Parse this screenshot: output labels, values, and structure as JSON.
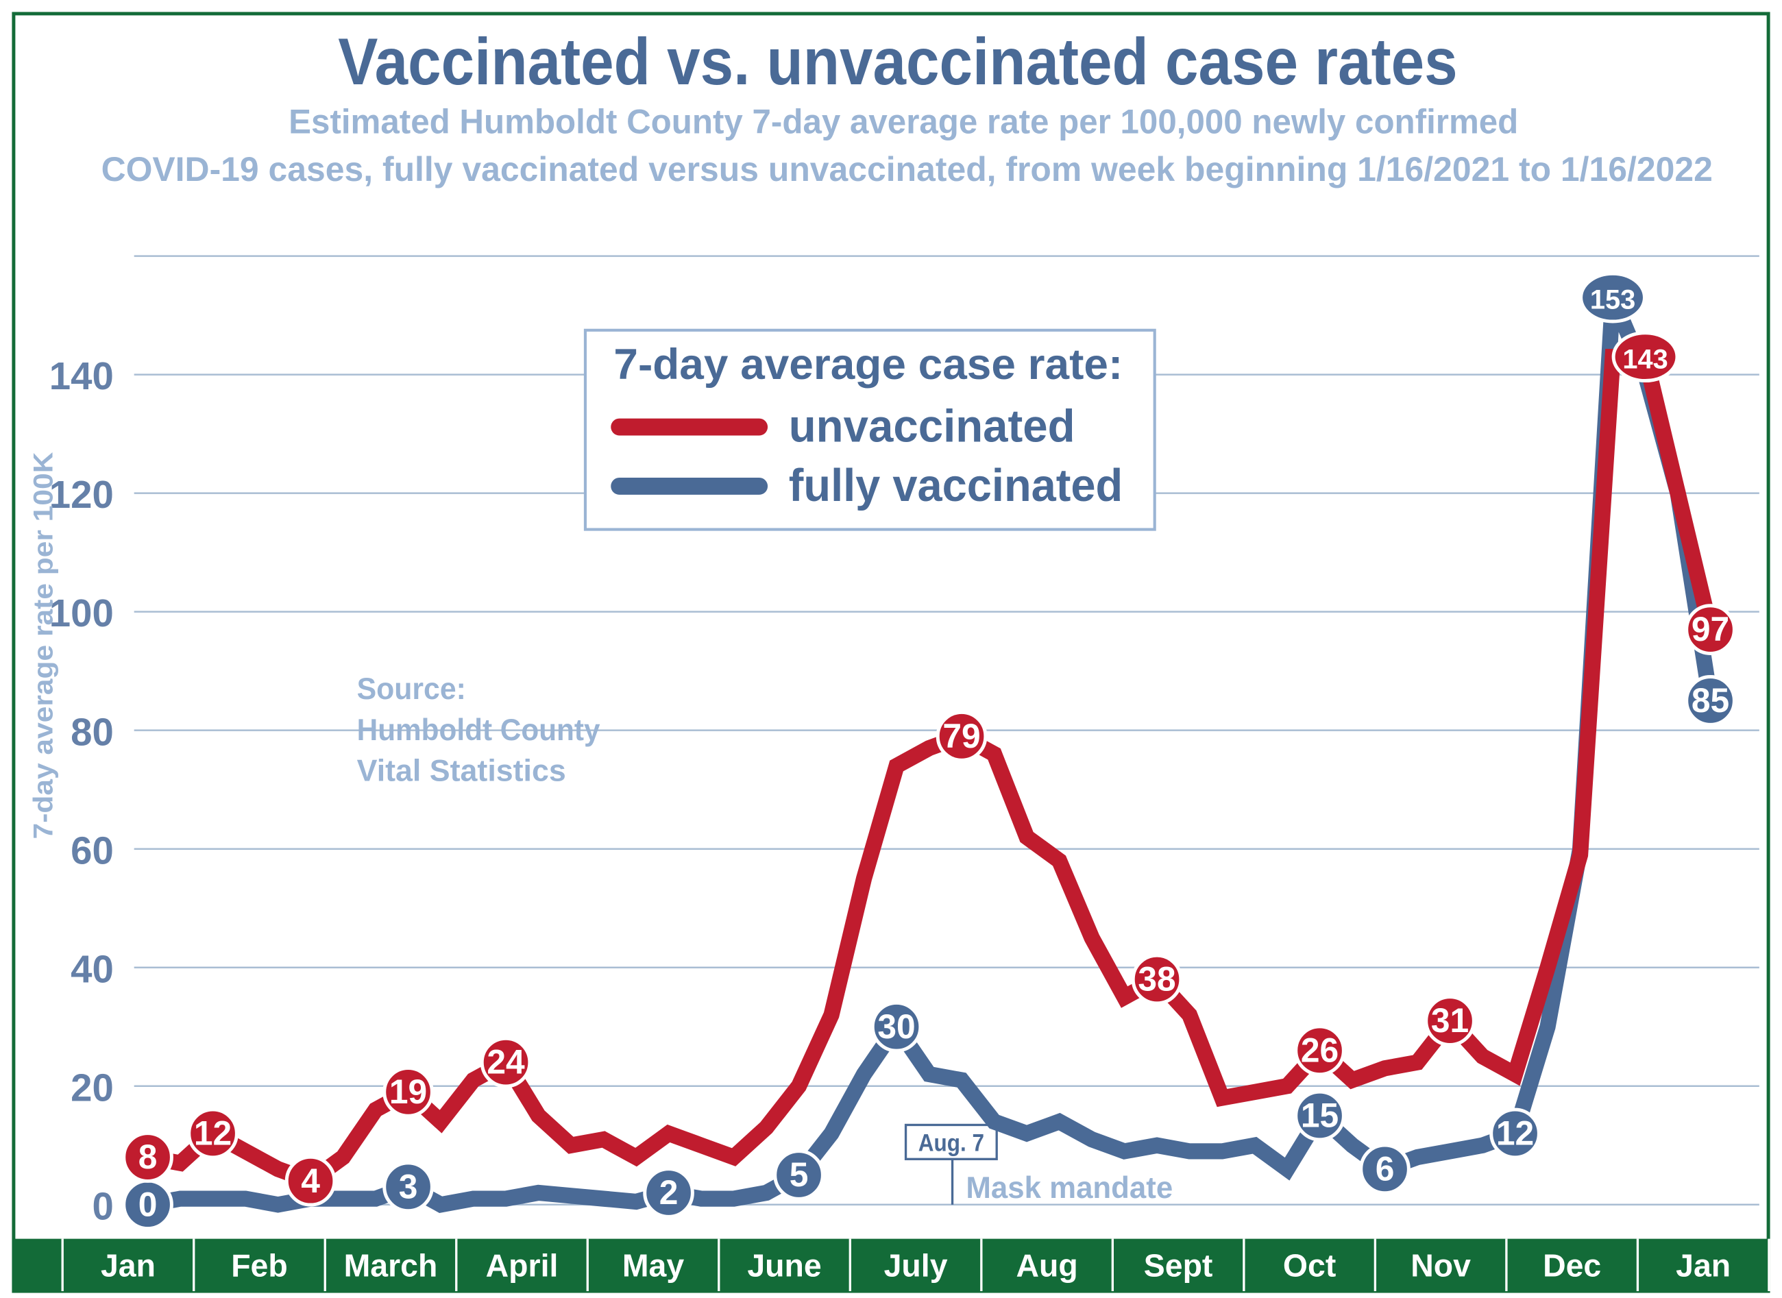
{
  "chart_data": {
    "type": "line",
    "title": "Vaccinated vs. unvaccinated case rates",
    "subtitle_line1": "Estimated Humboldt County 7-day average rate per 100,000 newly confirmed",
    "subtitle_line2": "COVID-19 cases,  fully vaccinated versus unvaccinated, from week beginning 1/16/2021 to 1/16/2022",
    "ylabel": "7-day average rate per 100K",
    "ylim": [
      0,
      160
    ],
    "yticks": [
      0,
      20,
      40,
      60,
      80,
      100,
      120,
      140
    ],
    "grid": true,
    "x_range": [
      "1/16/2021",
      "1/16/2022"
    ],
    "months": [
      "Jan",
      "Feb",
      "March",
      "April",
      "May",
      "June",
      "July",
      "Aug",
      "Sept",
      "Oct",
      "Nov",
      "Dec",
      "Jan"
    ],
    "legend": {
      "title": "7-day average case rate:",
      "placement": "top-center"
    },
    "series": [
      {
        "name": "unvaccinated",
        "color": "#c01c2e",
        "values": [
          8,
          7,
          12,
          9,
          6,
          4,
          8,
          16,
          19,
          14,
          21,
          24,
          15,
          10,
          11,
          8,
          12,
          10,
          8,
          13,
          20,
          32,
          55,
          74,
          77,
          79,
          76,
          62,
          58,
          45,
          35,
          38,
          32,
          18,
          19,
          20,
          26,
          21,
          23,
          24,
          31,
          25,
          22,
          40,
          59,
          143,
          143,
          120,
          97
        ],
        "labeled_points": [
          0,
          2,
          5,
          8,
          11,
          25,
          31,
          36,
          40,
          46,
          48
        ]
      },
      {
        "name": "fully vaccinated",
        "color": "#4a6a96",
        "values": [
          0,
          1,
          1,
          1,
          0,
          1,
          1,
          1,
          3,
          0,
          1,
          1,
          2,
          1.5,
          1,
          0.5,
          2,
          1,
          1,
          2,
          5,
          12,
          22,
          30,
          22,
          21,
          14,
          12,
          14,
          11,
          9,
          10,
          9,
          9,
          10,
          6,
          15,
          10,
          6,
          8,
          9,
          10,
          12,
          30,
          60,
          153,
          140,
          120,
          85
        ],
        "labeled_points": [
          0,
          8,
          16,
          20,
          23,
          36,
          38,
          42,
          45,
          48
        ]
      }
    ],
    "annotations": {
      "source_label": "Source:",
      "source_line1": "Humboldt County",
      "source_line2": "Vital Statistics",
      "event_date": "Aug. 7",
      "event_label": "Mask mandate"
    }
  },
  "colors": {
    "frame_green": "#136b38",
    "title_blue": "#4a6a96",
    "subtitle_blue": "#9ab4d4",
    "grid": "#a9bdd3",
    "tick": "#6580a8"
  }
}
